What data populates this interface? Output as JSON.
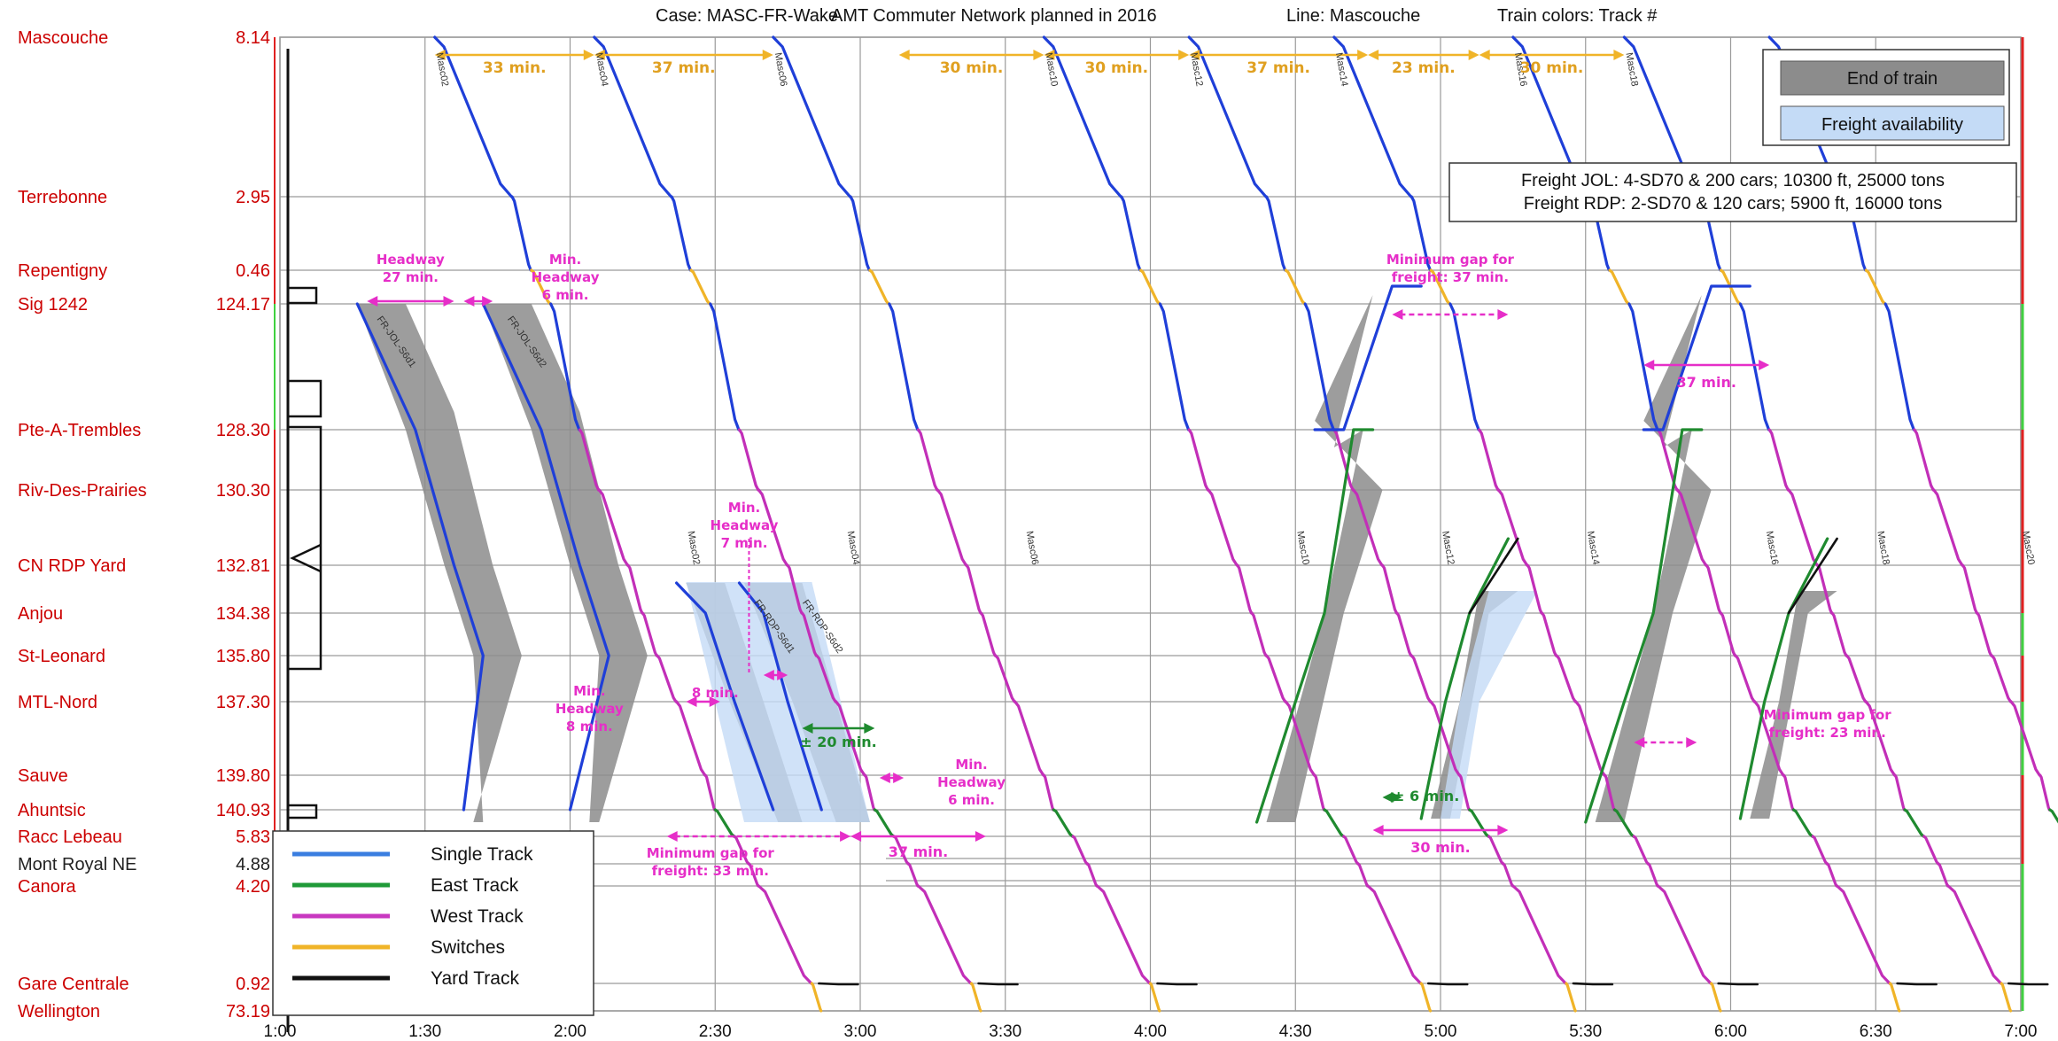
{
  "chart_data": {
    "type": "line",
    "header": {
      "case": "Case: MASC-FR-Wake",
      "network": "AMT Commuter Network planned in 2016",
      "line": "Line: Mascouche",
      "colors": "Train colors: Track #"
    },
    "x_ticks": [
      "1:00",
      "1:30",
      "2:00",
      "2:30",
      "3:00",
      "3:30",
      "4:00",
      "4:30",
      "5:00",
      "5:30",
      "6:00",
      "6:30",
      "7:00"
    ],
    "x_range": [
      60,
      420
    ],
    "stations": [
      {
        "name": "Mascouche",
        "km": "8.14",
        "color": "#cc0000"
      },
      {
        "name": "Terrebonne",
        "km": "2.95",
        "color": "#cc0000"
      },
      {
        "name": "Repentigny",
        "km": "0.46",
        "color": "#cc0000"
      },
      {
        "name": "Sig 1242",
        "km": "124.17",
        "color": "#cc0000"
      },
      {
        "name": "Pte-A-Trembles",
        "km": "128.30",
        "color": "#cc0000"
      },
      {
        "name": "Riv-Des-Prairies",
        "km": "130.30",
        "color": "#cc0000"
      },
      {
        "name": "CN RDP Yard",
        "km": "132.81",
        "color": "#cc0000"
      },
      {
        "name": "Anjou",
        "km": "134.38",
        "color": "#cc0000"
      },
      {
        "name": "St-Leonard",
        "km": "135.80",
        "color": "#cc0000"
      },
      {
        "name": "MTL-Nord",
        "km": "137.30",
        "color": "#cc0000"
      },
      {
        "name": "Sauve",
        "km": "139.80",
        "color": "#cc0000"
      },
      {
        "name": "Ahuntsic",
        "km": "140.93",
        "color": "#cc0000"
      },
      {
        "name": "Racc Lebeau",
        "km": "5.83",
        "color": "#cc0000"
      },
      {
        "name": "Mont Royal NE",
        "km": "4.88",
        "color": "#222222"
      },
      {
        "name": "Canora",
        "km": "4.20",
        "color": "#cc0000"
      },
      {
        "name": "Gare Centrale",
        "km": "0.92",
        "color": "#cc0000"
      },
      {
        "name": "Wellington",
        "km": "73.19",
        "color": "#cc0000"
      }
    ],
    "legend": [
      {
        "name": "Single Track",
        "color": "#3a7ee0"
      },
      {
        "name": "East Track",
        "color": "#1f9a38"
      },
      {
        "name": "West Track",
        "color": "#c838c0"
      },
      {
        "name": "Switches",
        "color": "#f0b428"
      },
      {
        "name": "Yard Track",
        "color": "#111111"
      }
    ],
    "legend_boxes": {
      "end_of_train": "End of train",
      "freight_availability": "Freight availability"
    },
    "freight_info": [
      "Freight JOL: 4-SD70 & 200 cars; 10300 ft, 25000 tons",
      "Freight RDP: 2-SD70 & 120 cars; 5900 ft, 16000 tons"
    ],
    "train_ids": [
      {
        "name": "Masc02",
        "x": 92
      },
      {
        "name": "Masc04",
        "x": 125
      },
      {
        "name": "Masc06",
        "x": 162
      },
      {
        "name": "Masc10",
        "x": 218
      },
      {
        "name": "Masc12",
        "x": 248
      },
      {
        "name": "Masc14",
        "x": 278
      },
      {
        "name": "Masc16",
        "x": 315
      },
      {
        "name": "Masc18",
        "x": 338
      },
      {
        "name": "Masc20",
        "x": 368
      }
    ],
    "top_gaps": [
      {
        "label": "33 min.",
        "from": 92,
        "to": 125
      },
      {
        "label": "37 min.",
        "from": 125,
        "to": 162
      },
      {
        "label": "30 min.",
        "from": 188,
        "to": 218
      },
      {
        "label": "30 min.",
        "from": 218,
        "to": 248
      },
      {
        "label": "37 min.",
        "from": 248,
        "to": 285
      },
      {
        "label": "23 min.",
        "from": 285,
        "to": 308
      },
      {
        "label": "30 min.",
        "from": 308,
        "to": 338
      }
    ],
    "annotations": {
      "headway_27": "Headway 27 min.",
      "headway_6_top": "Min. Headway 6 min.",
      "headway_7": "Min. Headway 7 min.",
      "headway_8_left": "Min. Headway 8 min.",
      "headway_8": "8 min.",
      "headway_6_bottom": "Min. Headway 6 min.",
      "pm20": "± 20 min.",
      "pm6": "± 6 min.",
      "gap_33": "Minimum gap for freight: 33 min.",
      "bottom_37": "37 min.",
      "gap_37_upper": "Minimum gap for freight: 37 min.",
      "right_37": "37 min.",
      "bottom_30": "30 min.",
      "gap_23": "Minimum gap for freight: 23 min."
    }
  }
}
